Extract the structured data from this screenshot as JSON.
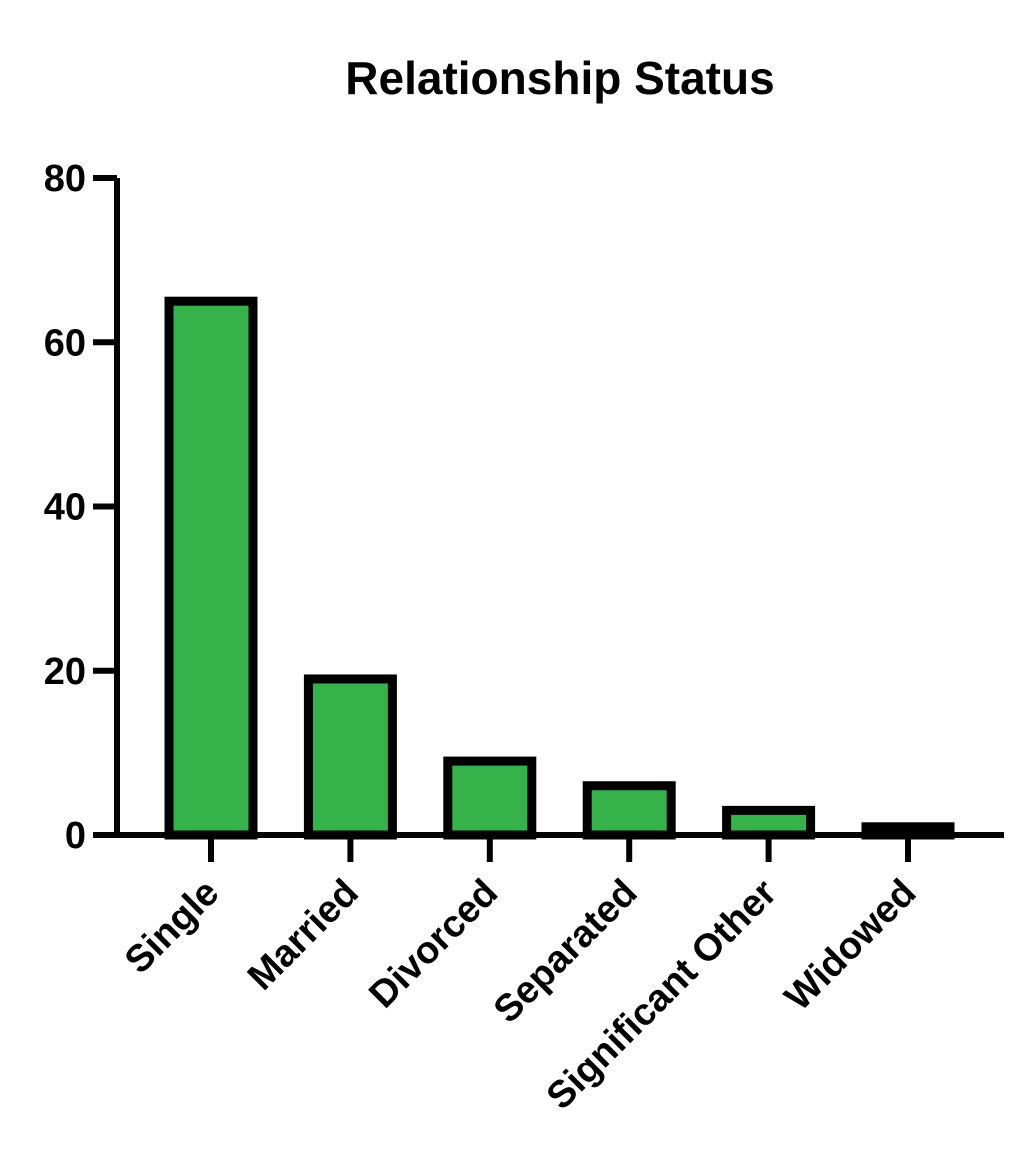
{
  "colors": {
    "bar_fill": "#35b34a",
    "bar_stroke": "#000000",
    "axis": "#000000",
    "background": "#ffffff"
  },
  "chart_data": {
    "type": "bar",
    "title": "Relationship Status",
    "xlabel": "",
    "ylabel": "",
    "categories": [
      "Single",
      "Married",
      "Divorced",
      "Separated",
      "Significant Other",
      "Widowed"
    ],
    "values": [
      65,
      19,
      9,
      6,
      3,
      1
    ],
    "ylim": [
      0,
      80
    ],
    "yticks": [
      "0",
      "20",
      "40",
      "60",
      "80"
    ],
    "grid": false,
    "legend": "none"
  }
}
